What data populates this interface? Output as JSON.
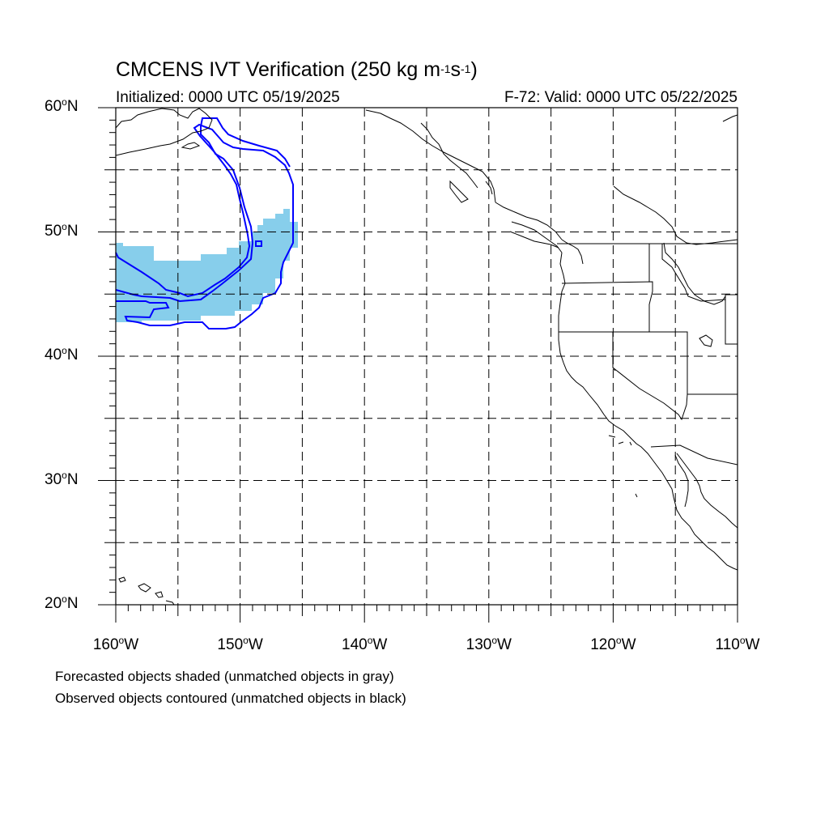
{
  "title": {
    "main": "CMCENS IVT Verification (250 kg m",
    "sup1": "-1",
    "mid": "s",
    "sup2": "-1",
    "end": ")"
  },
  "init_text": "Initialized: 0000 UTC 05/19/2025",
  "valid_text": "F-72: Valid: 0000 UTC 05/22/2025",
  "lat_labels": [
    "60",
    "50",
    "40",
    "30",
    "20"
  ],
  "lat_suffix": "N",
  "lon_labels": [
    "160",
    "150",
    "140",
    "130",
    "120",
    "110"
  ],
  "lon_suffix": "W",
  "notes": {
    "forecast": "Forecasted objects shaded (unmatched objects in gray)",
    "observed": "Observed objects contoured (unmatched objects in black)"
  },
  "colors": {
    "forecast_fill": "#87ceeb",
    "observed_contour": "#0000ff",
    "grid": "#000000",
    "coast": "#000000"
  },
  "map_extent": {
    "lon": [
      -160,
      -110
    ],
    "lat": [
      20,
      60
    ]
  }
}
